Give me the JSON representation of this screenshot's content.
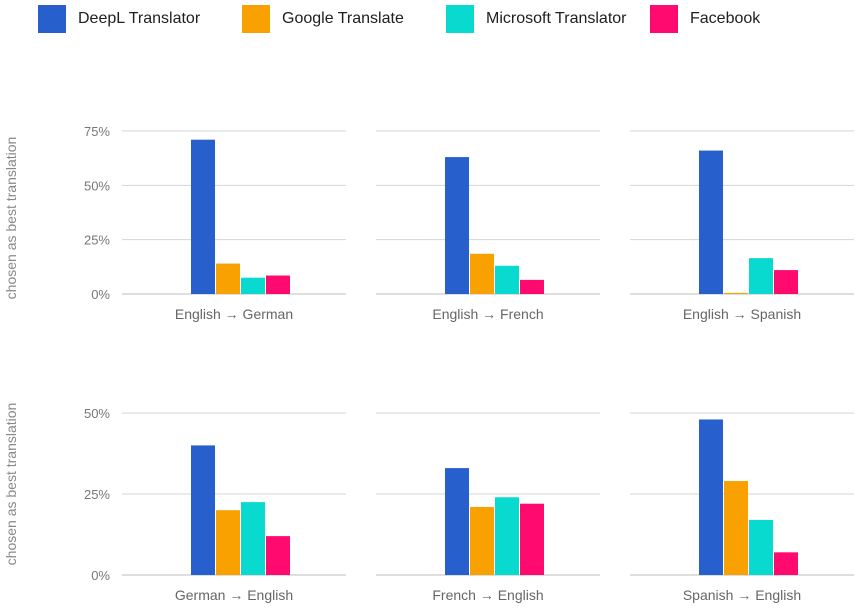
{
  "legend": [
    {
      "name": "DeepL Translator",
      "color": "#2760cc"
    },
    {
      "name": "Google Translate",
      "color": "#f9a100"
    },
    {
      "name": "Microsoft Translator",
      "color": "#08dacf"
    },
    {
      "name": "Facebook",
      "color": "#ff0a6e"
    }
  ],
  "chart_data": [
    {
      "type": "bar",
      "ylabel": "chosen as best translation",
      "ylim": [
        0,
        0.75
      ],
      "yticks": [
        "0%",
        "25%",
        "50%",
        "75%"
      ],
      "legend": "top",
      "grid": true,
      "panels": [
        {
          "label": "English → German",
          "values": [
            0.71,
            0.14,
            0.075,
            0.085
          ]
        },
        {
          "label": "English → French",
          "values": [
            0.63,
            0.185,
            0.13,
            0.065
          ]
        },
        {
          "label": "English → Spanish",
          "values": [
            0.66,
            0.005,
            0.165,
            0.11
          ]
        }
      ]
    },
    {
      "type": "bar",
      "ylabel": "chosen as best translation",
      "ylim": [
        0,
        0.5
      ],
      "yticks": [
        "0%",
        "25%",
        "50%"
      ],
      "legend": "top",
      "grid": true,
      "panels": [
        {
          "label": "German → English",
          "values": [
            0.4,
            0.2,
            0.225,
            0.12
          ]
        },
        {
          "label": "French → English",
          "values": [
            0.33,
            0.21,
            0.24,
            0.22
          ]
        },
        {
          "label": "Spanish → English",
          "values": [
            0.48,
            0.29,
            0.17,
            0.07
          ]
        }
      ]
    }
  ]
}
